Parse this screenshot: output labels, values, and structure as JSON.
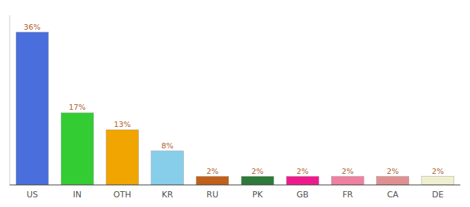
{
  "chart_data": {
    "type": "bar",
    "categories": [
      "US",
      "IN",
      "OTH",
      "KR",
      "RU",
      "PK",
      "GB",
      "FR",
      "CA",
      "DE"
    ],
    "values": [
      36,
      17,
      13,
      8,
      2,
      2,
      2,
      2,
      2,
      2
    ],
    "value_labels": [
      "36%",
      "17%",
      "13%",
      "8%",
      "2%",
      "2%",
      "2%",
      "2%",
      "2%",
      "2%"
    ],
    "colors": [
      "#4a6fdc",
      "#33cc33",
      "#f0a500",
      "#87ceeb",
      "#c0601a",
      "#2d7a3a",
      "#ee1a8c",
      "#f080a0",
      "#e09090",
      "#f0f0d0"
    ],
    "ylim": [
      0,
      40
    ],
    "data_labels": true,
    "tick_labels": "x",
    "grid": false
  }
}
